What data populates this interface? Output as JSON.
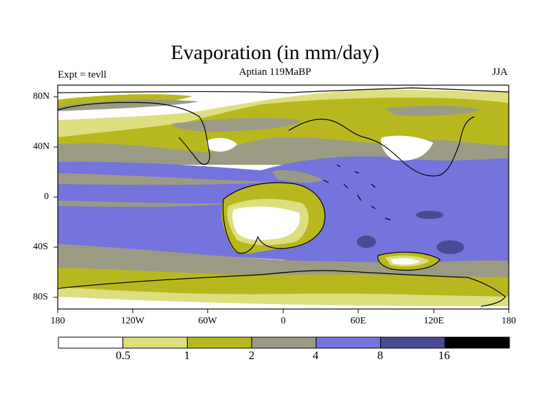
{
  "title": "Evaporation (in mm/day)",
  "subtitle": "Aptian   119MaBP",
  "left_label": "Expt = tevll",
  "right_label": "JJA",
  "colors": {
    "c0": "#ffffff",
    "c1": "#dede80",
    "c2": "#b8b81e",
    "c3": "#9b9b85",
    "c4": "#7474dc",
    "c5": "#4a4a96",
    "c6": "#000000"
  },
  "chart_data": {
    "type": "heatmap",
    "title": "Evaporation (in mm/day)",
    "units": "mm/day",
    "experiment": "tevll",
    "season": "JJA",
    "period": "Aptian 119MaBP",
    "x_ticks": [
      "180",
      "120W",
      "60W",
      "0",
      "60E",
      "120E",
      "180"
    ],
    "y_ticks": [
      "80N",
      "40N",
      "0",
      "40S",
      "80S"
    ],
    "xlim": [
      -180,
      180
    ],
    "ylim": [
      -90,
      90
    ],
    "colorbar_levels": [
      "0.5",
      "1",
      "2",
      "4",
      "8",
      "16"
    ],
    "colorbar_colors": [
      "#ffffff",
      "#dede80",
      "#b8b81e",
      "#9b9b85",
      "#7474dc",
      "#4a4a96",
      "#000000"
    ]
  }
}
